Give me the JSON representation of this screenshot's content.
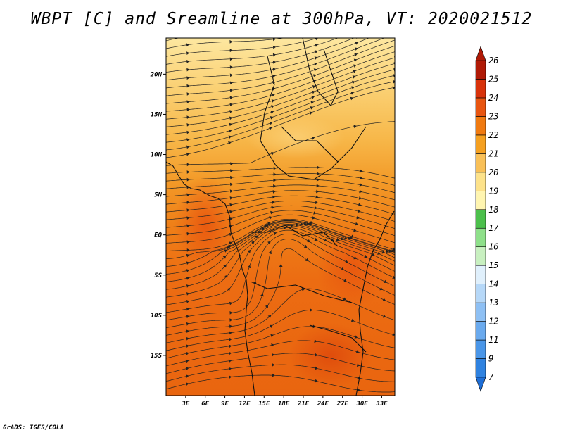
{
  "chart_data": {
    "type": "heatmap",
    "title": "WBPT [C] and Sreamline at 300hPa, VT: 2020021512",
    "field": "Wet-bulb potential temperature (C) with streamlines, 300hPa",
    "x_axis": {
      "range": [
        0,
        35
      ],
      "tick_values": [
        3,
        6,
        9,
        12,
        15,
        18,
        21,
        24,
        27,
        30,
        33
      ],
      "tick_labels": [
        "3E",
        "6E",
        "9E",
        "12E",
        "15E",
        "18E",
        "21E",
        "24E",
        "27E",
        "30E",
        "33E"
      ]
    },
    "y_axis": {
      "range": [
        -20,
        24.5
      ],
      "tick_values": [
        20,
        15,
        10,
        5,
        0,
        -5,
        -10,
        -15
      ],
      "tick_labels": [
        "20N",
        "15N",
        "10N",
        "5N",
        "EQ",
        "5S",
        "10S",
        "15S"
      ]
    },
    "colorbar": {
      "labels": [
        "7",
        "9",
        "11",
        "12",
        "13",
        "14",
        "15",
        "16",
        "17",
        "18",
        "19",
        "20",
        "21",
        "22",
        "23",
        "24",
        "25",
        "26"
      ],
      "colors": [
        "#1e6ed6",
        "#2f82e0",
        "#4a96e8",
        "#6aaaee",
        "#8ec0f4",
        "#b6d8f8",
        "#e0f0fc",
        "#c8f0c0",
        "#8ee08a",
        "#4cc04c",
        "#fff5b0",
        "#fde28a",
        "#f9c057",
        "#f5a020",
        "#f07a10",
        "#e85510",
        "#d8320a",
        "#b01a06"
      ]
    },
    "wbpt_bands_by_latitude": [
      {
        "lat": 23,
        "value": 19.5
      },
      {
        "lat": 18,
        "value": 20
      },
      {
        "lat": 13,
        "value": 20.5
      },
      {
        "lat": 9,
        "value": 21
      },
      {
        "lat": 5,
        "value": 22
      },
      {
        "lat": 0,
        "value": 22.5
      },
      {
        "lat": -5,
        "value": 23
      },
      {
        "lat": -10,
        "value": 23
      },
      {
        "lat": -15,
        "value": 23.5
      },
      {
        "lat": -19,
        "value": 23
      }
    ]
  },
  "footer": "GrADS: IGES/COLA"
}
